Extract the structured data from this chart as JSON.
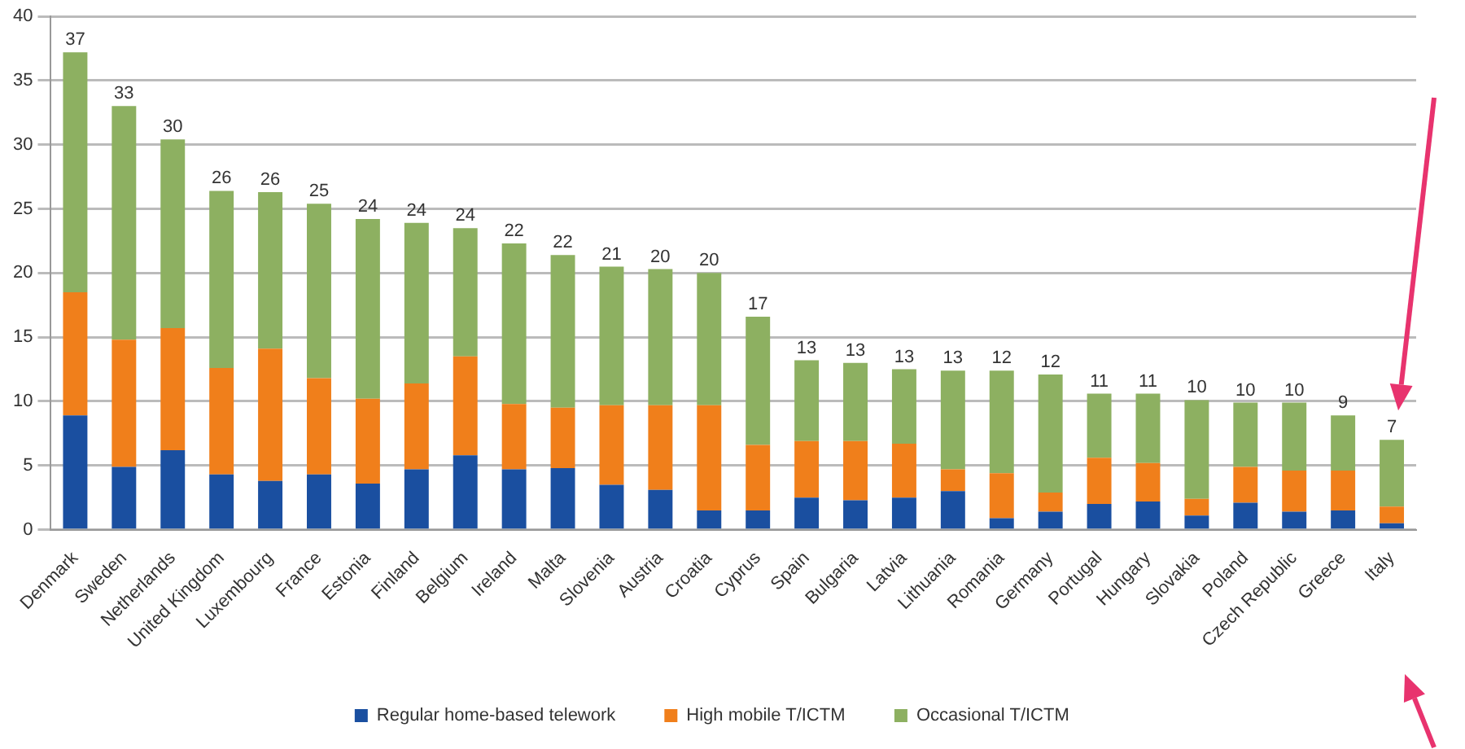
{
  "chart_data": {
    "type": "bar",
    "stacked": true,
    "categories": [
      "Denmark",
      "Sweden",
      "Netherlands",
      "United Kingdom",
      "Luxembourg",
      "France",
      "Estonia",
      "Finland",
      "Belgium",
      "Ireland",
      "Malta",
      "Slovenia",
      "Austria",
      "Croatia",
      "Cyprus",
      "Spain",
      "Bulgaria",
      "Latvia",
      "Lithuania",
      "Romania",
      "Germany",
      "Portugal",
      "Hungary",
      "Slovakia",
      "Poland",
      "Czech Republic",
      "Greece",
      "Italy"
    ],
    "series": [
      {
        "name": "Regular home-based telework",
        "color": "#1a4fa0",
        "values": [
          8.9,
          4.9,
          6.2,
          4.3,
          3.8,
          4.3,
          3.6,
          4.7,
          5.8,
          4.7,
          4.8,
          3.5,
          3.1,
          1.5,
          1.5,
          2.5,
          2.3,
          2.5,
          3.0,
          0.9,
          1.4,
          2.0,
          2.2,
          1.1,
          2.1,
          1.4,
          1.5,
          0.5
        ]
      },
      {
        "name": "High mobile T/ICTM",
        "color": "#f07f1b",
        "values": [
          9.6,
          9.9,
          9.5,
          8.3,
          10.3,
          7.5,
          6.6,
          6.7,
          7.7,
          5.1,
          4.7,
          6.2,
          6.6,
          8.2,
          5.1,
          4.4,
          4.6,
          4.2,
          1.7,
          3.5,
          1.5,
          3.6,
          3.0,
          1.3,
          2.8,
          3.2,
          3.1,
          1.3
        ]
      },
      {
        "name": "Occasional T/ICTM",
        "color": "#8db061",
        "values": [
          18.7,
          18.2,
          14.7,
          13.8,
          12.2,
          13.6,
          14.0,
          12.5,
          10.0,
          12.5,
          11.9,
          10.8,
          10.6,
          10.3,
          10.0,
          6.3,
          6.1,
          5.8,
          7.7,
          8.0,
          9.2,
          5.0,
          5.4,
          7.7,
          5.0,
          5.3,
          4.3,
          5.2
        ]
      }
    ],
    "totals": [
      "37",
      "33",
      "30",
      "26",
      "26",
      "25",
      "24",
      "24",
      "24",
      "22",
      "22",
      "21",
      "20",
      "20",
      "17",
      "13",
      "13",
      "13",
      "13",
      "12",
      "12",
      "11",
      "11",
      "10",
      "10",
      "10",
      "9",
      "7"
    ],
    "ylim": [
      0,
      40
    ],
    "yticks": [
      0,
      5,
      10,
      15,
      20,
      25,
      30,
      35,
      40
    ],
    "grid": "y",
    "legend": "bottom"
  }
}
